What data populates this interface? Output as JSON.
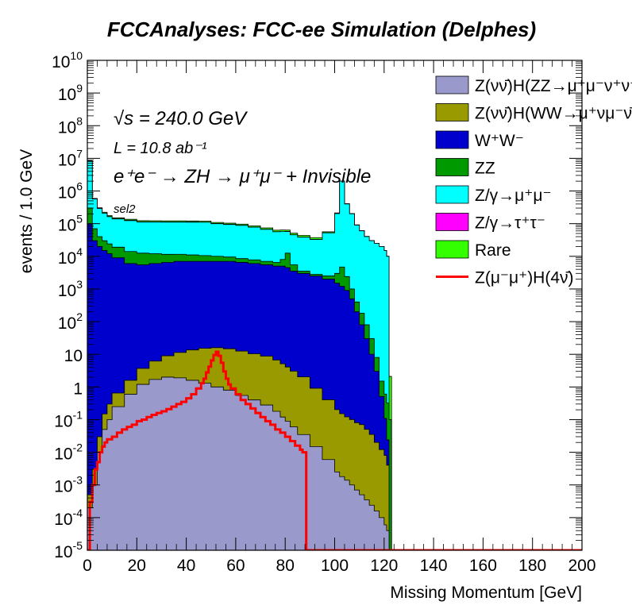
{
  "title": "FCCAnalyses: FCC-ee Simulation (Delphes)",
  "chart_data": {
    "type": "area",
    "stacked": true,
    "xlabel": "Missing Momentum [GeV]",
    "ylabel": "events / 1.0 GeV",
    "xlim": [
      0,
      200
    ],
    "ylim": [
      1e-05,
      10000000000.0
    ],
    "yscale": "log",
    "x_ticks": [
      "0",
      "20",
      "40",
      "60",
      "80",
      "100",
      "120",
      "140",
      "160",
      "180",
      "200"
    ],
    "y_ticks": [
      {
        "base": "10",
        "exp": "-5"
      },
      {
        "base": "10",
        "exp": "-4"
      },
      {
        "base": "10",
        "exp": "-3"
      },
      {
        "base": "10",
        "exp": "-2"
      },
      {
        "base": "10",
        "exp": "-1"
      },
      {
        "base": "1",
        "exp": ""
      },
      {
        "base": "10",
        "exp": ""
      },
      {
        "base": "10",
        "exp": "2"
      },
      {
        "base": "10",
        "exp": "3"
      },
      {
        "base": "10",
        "exp": "4"
      },
      {
        "base": "10",
        "exp": "5"
      },
      {
        "base": "10",
        "exp": "6"
      },
      {
        "base": "10",
        "exp": "7"
      },
      {
        "base": "10",
        "exp": "8"
      },
      {
        "base": "10",
        "exp": "9"
      },
      {
        "base": "10",
        "exp": "10"
      }
    ],
    "annotations": {
      "sqrt_s": "√s = 240.0 GeV",
      "lumi": "L = 10.8 ab⁻¹",
      "process": "e⁺e⁻ → ZH → μ⁺μ⁻ + Invisible",
      "selection": "sel2"
    },
    "x_edges": [
      0,
      2,
      4,
      6,
      8,
      10,
      15,
      20,
      25,
      30,
      35,
      40,
      45,
      50,
      55,
      60,
      65,
      70,
      75,
      78,
      80,
      82,
      85,
      90,
      95,
      100,
      102,
      104,
      106,
      108,
      110,
      112,
      114,
      116,
      118,
      120,
      121,
      122,
      123,
      124,
      125,
      126
    ],
    "series": [
      {
        "name": "Z(νν̄)H(ZZ→μ⁺μ⁻ν⁺ν⁻)",
        "color": "#9999cc",
        "values": [
          0.0002,
          0.001,
          0.01,
          0.05,
          0.1,
          0.25,
          0.6,
          1.2,
          1.7,
          2.0,
          1.9,
          1.6,
          1.3,
          1.0,
          0.8,
          0.55,
          0.4,
          0.28,
          0.18,
          0.12,
          0.09,
          0.06,
          0.035,
          0.015,
          0.006,
          0.0025,
          0.0018,
          0.0014,
          0.001,
          0.0007,
          0.0005,
          0.00035,
          0.00024,
          0.00016,
          0.0001,
          6e-05,
          4e-05,
          0,
          0,
          0,
          0
        ]
      },
      {
        "name": "Z(νν̄)H(WW→μ⁺νμ⁻ν̄)",
        "color": "#999900",
        "values": [
          0.0003,
          0.002,
          0.02,
          0.1,
          0.2,
          0.4,
          1.0,
          2.5,
          4.5,
          7.0,
          9.5,
          12,
          14,
          15,
          14,
          12,
          10,
          8.5,
          6.5,
          5,
          4,
          3,
          2,
          0.9,
          0.4,
          0.2,
          0.15,
          0.12,
          0.1,
          0.08,
          0.07,
          0.05,
          0.035,
          0.02,
          0.012,
          0.008,
          0.004,
          0,
          0,
          0,
          0
        ]
      },
      {
        "name": "W⁺W⁻",
        "color": "#0000cc",
        "values": [
          100000.0,
          30000.0,
          20000.0,
          15000.0,
          12000.0,
          9000,
          6000,
          5500,
          6000,
          6500,
          7000,
          7000,
          7000,
          7000,
          7000,
          6500,
          6000,
          5500,
          5000,
          5000,
          4500,
          3500,
          3000,
          2500,
          2000,
          1500,
          1200,
          900,
          500,
          200,
          80,
          30,
          10,
          3,
          0.5,
          0.1,
          0.02,
          0,
          0,
          0,
          0
        ]
      },
      {
        "name": "ZZ",
        "color": "#009900",
        "values": [
          200000.0,
          40000.0,
          20000.0,
          15000.0,
          12000.0,
          10000.0,
          8000,
          7000,
          6000,
          5000,
          4500,
          4000,
          3500,
          3000,
          2500,
          2000,
          1800,
          1500,
          1500,
          3000,
          8000,
          2000,
          500,
          300,
          500,
          1500,
          3500,
          1500,
          500,
          200,
          100,
          50,
          20,
          5,
          1,
          0.5,
          0.3,
          0.1,
          0,
          0,
          0
        ]
      },
      {
        "name": "Z/γ→μ⁺μ⁻",
        "color": "#00ffff",
        "values": [
          8000000.0,
          500000.0,
          250000.0,
          180000.0,
          140000.0,
          120000.0,
          110000.0,
          100000.0,
          100000.0,
          100000.0,
          100000.0,
          100000.0,
          100000.0,
          90000.0,
          85000.0,
          80000.0,
          70000.0,
          60000.0,
          50000.0,
          50000.0,
          45000.0,
          40000.0,
          35000.0,
          30000.0,
          50000.0,
          200000.0,
          2000000.0,
          400000.0,
          200000.0,
          90000.0,
          60000.0,
          40000.0,
          30000.0,
          25000.0,
          20000.0,
          15000.0,
          10000.0,
          0,
          0,
          0,
          0
        ]
      },
      {
        "name": "Z/γ→τ⁺τ⁻",
        "color": "#ff00ff",
        "values": [
          8000,
          4000,
          2500,
          2200,
          2000,
          2000,
          2000,
          2000,
          1800,
          1600,
          1400,
          1200,
          1000,
          900,
          800,
          700,
          500,
          300,
          150,
          50,
          20,
          20,
          20,
          20,
          20,
          80,
          100,
          150,
          150,
          120,
          100,
          60,
          30,
          10,
          2,
          0.5,
          0,
          0,
          0,
          0,
          0
        ]
      },
      {
        "name": "Rare",
        "color": "#33ff00",
        "values": [
          50000.0,
          20000.0,
          15000.0,
          12000.0,
          11000.0,
          10000.0,
          10000.0,
          9000,
          9000,
          9000,
          9000,
          8500,
          8000,
          8000,
          8000,
          7500,
          7000,
          7000,
          6500,
          6000,
          6000,
          5500,
          5000,
          4500,
          4000,
          10000,
          15000,
          5000,
          2500,
          1500,
          1000,
          600,
          300,
          100,
          30,
          10,
          5,
          2,
          0,
          0,
          0
        ]
      }
    ],
    "signal": {
      "name": "Z(μ⁻μ⁺)H(4ν̄)",
      "color": "#ff0000",
      "x": [
        0,
        1,
        2,
        3,
        4,
        5,
        6,
        7,
        8,
        10,
        12,
        14,
        16,
        18,
        20,
        22,
        24,
        26,
        28,
        30,
        32,
        34,
        36,
        38,
        40,
        42,
        44,
        46,
        47,
        48,
        49,
        50,
        51,
        52,
        53,
        54,
        55,
        56,
        57,
        58,
        60,
        62,
        64,
        66,
        68,
        70,
        72,
        74,
        76,
        78,
        80,
        82,
        84,
        86,
        87,
        88,
        88.5,
        120,
        200
      ],
      "y": [
        1e-05,
        0.0003,
        0.001,
        0.003,
        0.005,
        0.01,
        0.015,
        0.02,
        0.025,
        0.03,
        0.04,
        0.05,
        0.06,
        0.07,
        0.09,
        0.1,
        0.12,
        0.14,
        0.16,
        0.18,
        0.21,
        0.25,
        0.3,
        0.35,
        0.45,
        0.6,
        0.9,
        1.3,
        1.8,
        2.8,
        4.2,
        6.5,
        9.5,
        12,
        9.0,
        5.5,
        3.0,
        1.8,
        1.2,
        0.9,
        0.6,
        0.4,
        0.3,
        0.22,
        0.16,
        0.12,
        0.09,
        0.07,
        0.05,
        0.04,
        0.03,
        0.022,
        0.016,
        0.012,
        0.01,
        0.01,
        1e-05,
        1e-05,
        1e-05
      ]
    },
    "legend": {
      "position": "top-right"
    }
  }
}
